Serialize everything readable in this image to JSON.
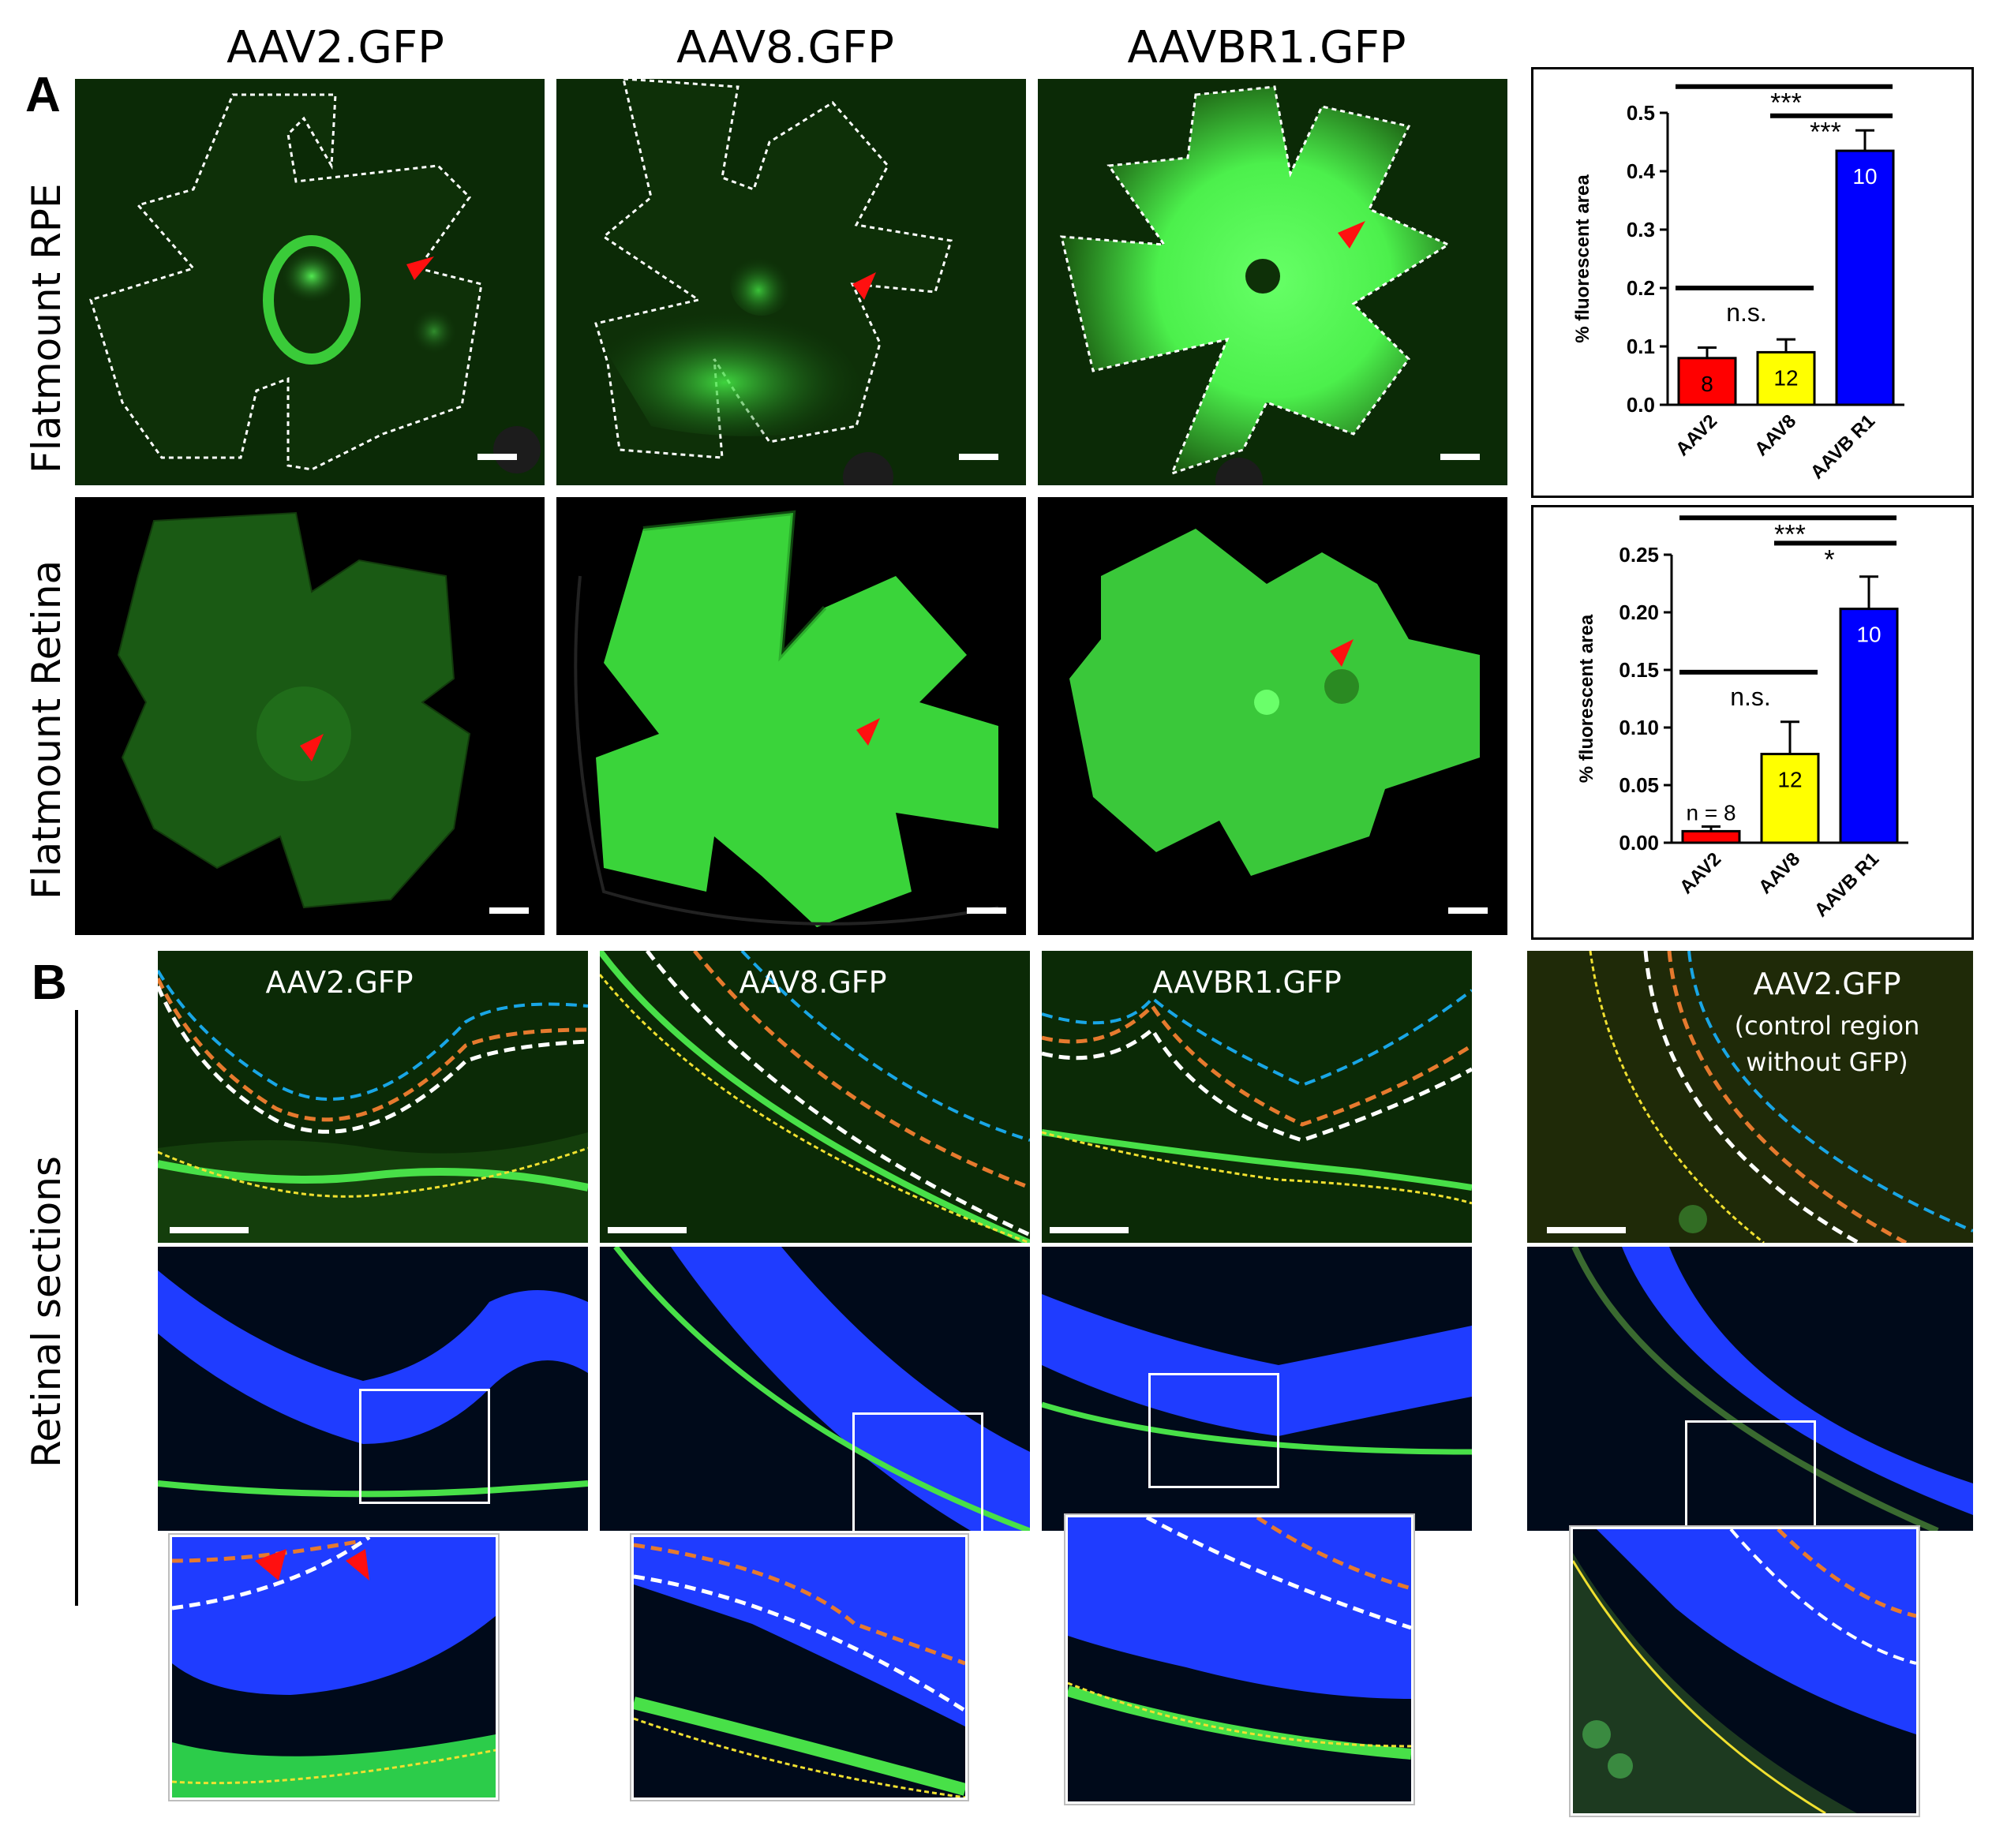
{
  "panel_a": {
    "letter": "A",
    "column_titles": [
      "AAV2.GFP",
      "AAV8.GFP",
      "AAVBR1.GFP"
    ],
    "row_labels": [
      "Flatmount RPE",
      "Flatmount Retina"
    ]
  },
  "panel_b": {
    "letter": "B",
    "row_label": "Retinal sections",
    "section_titles": [
      "AAV2.GFP",
      "AAV8.GFP",
      "AAVBR1.GFP",
      "AAV2.GFP"
    ],
    "control_note_line1": "(control region",
    "control_note_line2": "without GFP)"
  },
  "colors": {
    "aav2": "#ff0000",
    "aav8": "#ffff00",
    "aavbr1": "#0000ff",
    "gfp_green": "#39d639",
    "dapi_blue": "#1f3cff",
    "arrow_red": "#ff1010",
    "line_blue": "#19a6e6",
    "line_orange": "#e67a2e",
    "line_white": "#ffffff",
    "line_yellow": "#f0e030"
  },
  "chart_data": [
    {
      "type": "bar",
      "title": "",
      "xlabel": "",
      "ylabel": "% fluorescent area",
      "categories": [
        "AAV2",
        "AAV8",
        "AAVB R1"
      ],
      "values": [
        0.08,
        0.09,
        0.435
      ],
      "errors": [
        0.018,
        0.022,
        0.035
      ],
      "bar_labels": [
        "8",
        "12",
        "10"
      ],
      "bar_colors": [
        "#ff0000",
        "#ffff00",
        "#0000ff"
      ],
      "bar_label_colors": [
        "#000000",
        "#000000",
        "#ffffff"
      ],
      "ylim": [
        0,
        0.5
      ],
      "yticks": [
        0.0,
        0.1,
        0.2,
        0.3,
        0.4,
        0.5
      ],
      "ytick_labels": [
        "0.0",
        "0.1",
        "0.2",
        "0.3",
        "0.4",
        "0.5"
      ],
      "significance": [
        {
          "from": 0,
          "to": 2,
          "label": "***",
          "level": 0.545
        },
        {
          "from": 1,
          "to": 2,
          "label": "***",
          "level": 0.495
        },
        {
          "from": 0,
          "to": 1,
          "label": "n.s.",
          "level": 0.2
        }
      ]
    },
    {
      "type": "bar",
      "title": "",
      "xlabel": "",
      "ylabel": "% fluorescent area",
      "categories": [
        "AAV2",
        "AAV8",
        "AAVB R1"
      ],
      "values": [
        0.01,
        0.077,
        0.203
      ],
      "errors": [
        0.004,
        0.028,
        0.028
      ],
      "bar_labels": [
        "n = 8",
        "12",
        "10"
      ],
      "bar_colors": [
        "#ff0000",
        "#ffff00",
        "#0000ff"
      ],
      "bar_label_colors": [
        "#000000",
        "#000000",
        "#ffffff"
      ],
      "ylim": [
        0,
        0.25
      ],
      "yticks": [
        0.0,
        0.05,
        0.1,
        0.15,
        0.2,
        0.25
      ],
      "ytick_labels": [
        "0.00",
        "0.05",
        "0.10",
        "0.15",
        "0.20",
        "0.25"
      ],
      "significance": [
        {
          "from": 0,
          "to": 2,
          "label": "***",
          "level": 0.282
        },
        {
          "from": 1,
          "to": 2,
          "label": "*",
          "level": 0.26
        },
        {
          "from": 0,
          "to": 1,
          "label": "n.s.",
          "level": 0.148
        }
      ]
    }
  ]
}
